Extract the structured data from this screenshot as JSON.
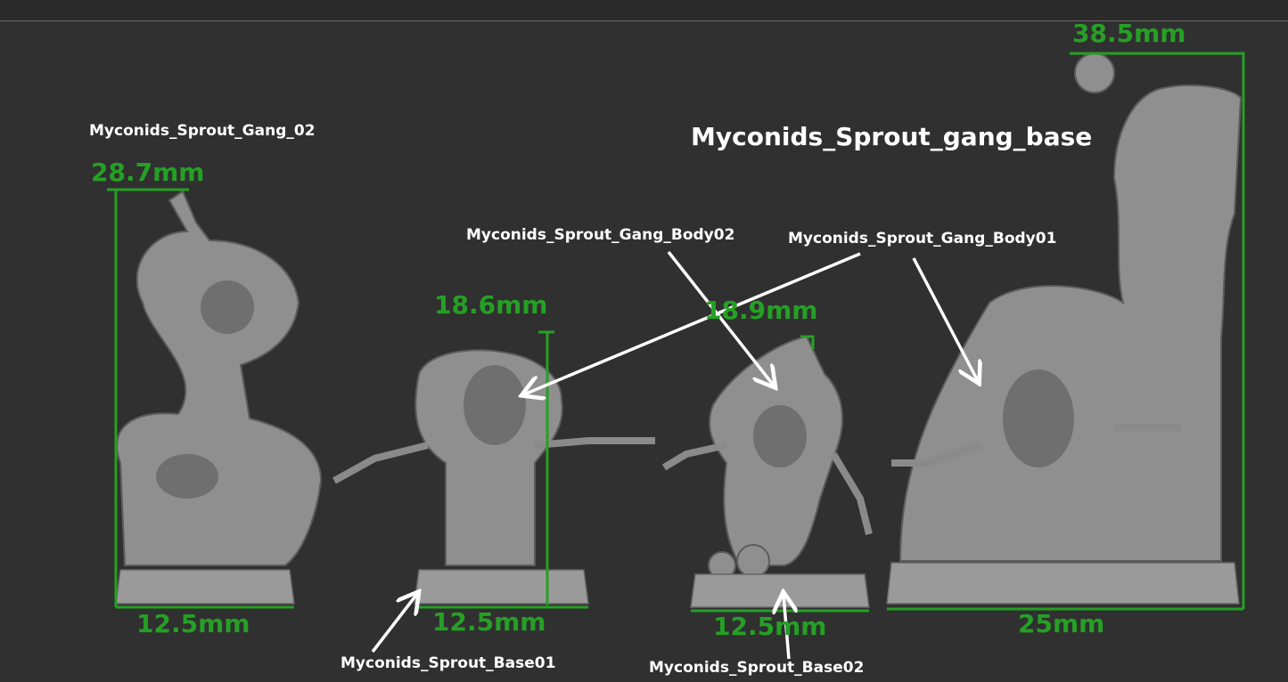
{
  "labels": {
    "gang02": "Myconids_Sprout_Gang_02",
    "gang_base": "Myconids_Sprout_gang_base",
    "body02": "Myconids_Sprout_Gang_Body02",
    "body01": "Myconids_Sprout_Gang_Body01",
    "base01": "Myconids_Sprout_Base01",
    "base02": "Myconids_Sprout_Base02"
  },
  "dimensions": {
    "fig1_height": "28.7mm",
    "fig1_width": "12.5mm",
    "fig2_height": "18.6mm",
    "fig2_width": "12.5mm",
    "fig3_height": "18.9mm",
    "fig3_width": "12.5mm",
    "fig4_height": "38.5mm",
    "fig4_width": "25mm"
  },
  "colors": {
    "background": "#303030",
    "dimension": "#25a025",
    "label": "#ffffff"
  }
}
